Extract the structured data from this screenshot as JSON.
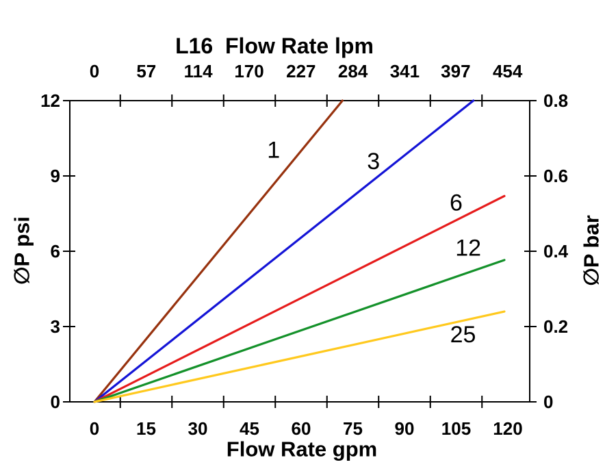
{
  "page": {
    "background": "#FFFFFF"
  },
  "chart_data": {
    "type": "line",
    "title": "L16  Flow Rate lpm",
    "axes": {
      "top": {
        "unit": "lpm",
        "tick_labels": [
          0,
          57,
          114,
          170,
          227,
          284,
          341,
          397,
          454
        ],
        "lpm_per_gpm": 3.7854
      },
      "bottom": {
        "label": "Flow Rate gpm",
        "tick_labels": [
          0,
          15,
          30,
          45,
          60,
          75,
          90,
          105,
          120
        ]
      },
      "left": {
        "label": "∅P psi",
        "tick_labels": [
          0,
          3,
          6,
          9,
          12
        ],
        "range": [
          0,
          12
        ]
      },
      "right": {
        "label": "∅P bar",
        "tick_labels": [
          0,
          0.2,
          0.4,
          0.6,
          0.8
        ],
        "range": [
          0,
          0.8
        ]
      }
    },
    "x_range_gpm": [
      0,
      120
    ],
    "unlabeled_minor_ticks_gpm": [
      7.5,
      22.5,
      37.5,
      52.5,
      67.5,
      82.5,
      97.5,
      112.5
    ],
    "grid": false,
    "legend": "inline-line-labels",
    "axis_color": "#000000",
    "series": [
      {
        "label": "1",
        "color": "#97320E",
        "points_gpm_psi": [
          [
            0,
            0
          ],
          [
            72,
            12
          ]
        ],
        "label_at_gpm_psi": [
          52,
          10.05
        ]
      },
      {
        "label": "3",
        "color": "#1414D6",
        "points_gpm_psi": [
          [
            0,
            0
          ],
          [
            110,
            12
          ]
        ],
        "label_at_gpm_psi": [
          81,
          9.6
        ]
      },
      {
        "label": "6",
        "color": "#E61C1C",
        "points_gpm_psi": [
          [
            0,
            0
          ],
          [
            119,
            8.2
          ]
        ],
        "label_at_gpm_psi": [
          105,
          7.95
        ]
      },
      {
        "label": "12",
        "color": "#14912A",
        "points_gpm_psi": [
          [
            0,
            0
          ],
          [
            119,
            5.65
          ]
        ],
        "label_at_gpm_psi": [
          108.5,
          6.15
        ]
      },
      {
        "label": "25",
        "color": "#FFC91E",
        "points_gpm_psi": [
          [
            0,
            0
          ],
          [
            119,
            3.6
          ]
        ],
        "label_at_gpm_psi": [
          107,
          2.7
        ]
      }
    ]
  }
}
